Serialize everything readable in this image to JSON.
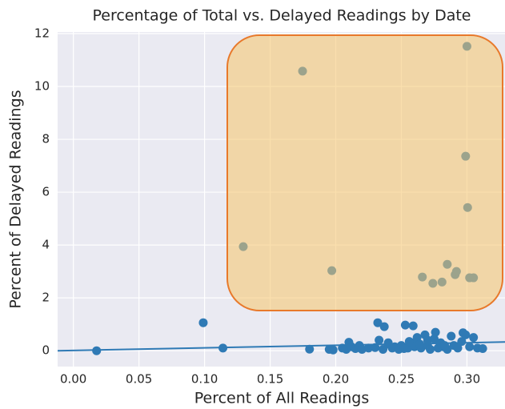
{
  "chart_data": {
    "type": "scatter",
    "title": "Percentage of Total vs. Delayed Readings by Date",
    "x_label": "Percent of All Readings",
    "y_label": "Percent of Delayed Readings",
    "color": "#2f7ab5",
    "grid": true,
    "xlim": [
      -0.012,
      0.329
    ],
    "ylim": [
      -0.6,
      12.06
    ],
    "xticks": [
      {
        "value": 0,
        "label": "0.00"
      },
      {
        "value": 0.05,
        "label": "0.05"
      },
      {
        "value": 0.1,
        "label": "0.10"
      },
      {
        "value": 0.15,
        "label": "0.15"
      },
      {
        "value": 0.2,
        "label": "0.20"
      },
      {
        "value": 0.25,
        "label": "0.25"
      },
      {
        "value": 0.3,
        "label": "0.30"
      }
    ],
    "yticks": [
      0,
      2,
      4,
      6,
      8,
      10,
      12
    ],
    "x": [
      0.0177,
      0.099,
      0.114,
      0.1295,
      0.1747,
      0.18,
      0.197,
      0.3,
      0.299,
      0.3005,
      0.285,
      0.266,
      0.274,
      0.281,
      0.291,
      0.292,
      0.302,
      0.305,
      0.232,
      0.237,
      0.253,
      0.259,
      0.195,
      0.198,
      0.205,
      0.208,
      0.21,
      0.212,
      0.215,
      0.218,
      0.22,
      0.225,
      0.23,
      0.233,
      0.236,
      0.24,
      0.243,
      0.245,
      0.248,
      0.25,
      0.252,
      0.255,
      0.258,
      0.26,
      0.262,
      0.265,
      0.268,
      0.27,
      0.272,
      0.275,
      0.278,
      0.28,
      0.282,
      0.285,
      0.288,
      0.29,
      0.293,
      0.296,
      0.299,
      0.302,
      0.305,
      0.308,
      0.312,
      0.264,
      0.27,
      0.276,
      0.283,
      0.297,
      0.24,
      0.256
    ],
    "values": [
      0,
      1.06,
      0.1,
      3.94,
      10.58,
      0.06,
      3.03,
      11.52,
      7.36,
      5.42,
      3.27,
      2.79,
      2.55,
      2.6,
      2.88,
      3.0,
      2.76,
      2.76,
      1.06,
      0.91,
      0.97,
      0.94,
      0.05,
      0.03,
      0.1,
      0.05,
      0.32,
      0.15,
      0.08,
      0.2,
      0.05,
      0.1,
      0.12,
      0.4,
      0.05,
      0.3,
      0.1,
      0.15,
      0.05,
      0.2,
      0.08,
      0.1,
      0.3,
      0.15,
      0.5,
      0.1,
      0.6,
      0.2,
      0.05,
      0.45,
      0.1,
      0.3,
      0.15,
      0.05,
      0.55,
      0.2,
      0.1,
      0.35,
      0.6,
      0.15,
      0.5,
      0.1,
      0.08,
      0.25,
      0.4,
      0.7,
      0.2,
      0.68,
      0.25,
      0.35
    ],
    "fit_line": {
      "x": [
        -0.012,
        0.329
      ],
      "y": [
        0.0,
        0.33
      ]
    }
  }
}
